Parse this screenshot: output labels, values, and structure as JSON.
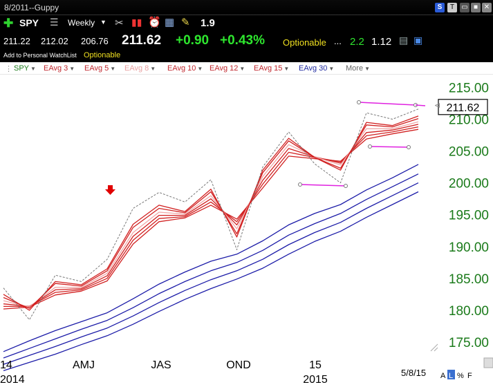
{
  "window": {
    "title": "8/2011--Guppy"
  },
  "toolbar": {
    "symbol": "SPY",
    "period": "Weekly",
    "value": "1.9"
  },
  "quote": {
    "open": "211.22",
    "high": "212.02",
    "low": "206.76",
    "last": "211.62",
    "change": "+0.90",
    "change_pct": "+0.43%",
    "optionable": "Optionable",
    "dots": "...",
    "stat1": "2.2",
    "stat2": "1.12",
    "watchlist": "Add to Personal WatchList",
    "optionable2": "Optionable"
  },
  "legend": [
    {
      "label": "SPY",
      "color": "#1a7a1a"
    },
    {
      "label": "EAvg 3",
      "color": "#c0272d"
    },
    {
      "label": "EAvg 5",
      "color": "#c0272d"
    },
    {
      "label": "EAvg 8",
      "color": "#e8a0a0"
    },
    {
      "label": "EAvg 10",
      "color": "#c0272d"
    },
    {
      "label": "EAvg 12",
      "color": "#c0272d"
    },
    {
      "label": "EAvg 15",
      "color": "#c0272d"
    },
    {
      "label": "EAvg 30",
      "color": "#1f2aa0"
    },
    {
      "label": "More",
      "color": "#666666"
    }
  ],
  "colors": {
    "price": "#777777",
    "short_ma": "#d12020",
    "short_ma_light": "#f0a8a8",
    "long_ma": "#1c1ca8",
    "trendline": "#e020e0",
    "axis_text": "#1a7a1a",
    "arrow": "#e00000"
  },
  "axis": {
    "y_ticks": [
      "215.00",
      "210.00",
      "205.00",
      "200.00",
      "195.00",
      "190.00",
      "185.00",
      "180.00",
      "175.00"
    ],
    "x_ticks": [
      "14",
      "AMJ",
      "JAS",
      "OND",
      "15"
    ],
    "year_labels": [
      "2014",
      "2015"
    ],
    "date": "5/8/15",
    "last_price_label": "211.62",
    "footer_buttons": [
      "A",
      "L",
      "%",
      "F"
    ]
  },
  "chart_data": {
    "type": "line",
    "ylim": [
      172.5,
      217
    ],
    "x": [
      "2014-01",
      "2014-02",
      "2014-03",
      "2014-04",
      "2014-05",
      "2014-06",
      "2014-07",
      "2014-08",
      "2014-09",
      "2014-10",
      "2014-11",
      "2014-12",
      "2015-01",
      "2015-02",
      "2015-03",
      "2015-04",
      "2015-05"
    ],
    "series": [
      {
        "values": [
          183.5,
          178.5,
          185.5,
          184.5,
          188.0,
          196.0,
          198.5,
          197.0,
          200.5,
          189.5,
          202.5,
          208.0,
          203.0,
          200.0,
          211.0,
          210.0,
          211.6
        ]
      },
      {
        "values": [
          182.5,
          180.0,
          184.5,
          184.0,
          186.5,
          193.5,
          196.5,
          195.5,
          199.0,
          191.5,
          202.0,
          207.0,
          204.0,
          202.0,
          209.5,
          209.0,
          210.5
        ]
      },
      {
        "values": [
          182.0,
          180.3,
          184.2,
          183.8,
          186.2,
          193.0,
          196.0,
          195.3,
          198.6,
          192.0,
          201.6,
          206.6,
          204.0,
          202.3,
          209.1,
          208.8,
          210.1
        ]
      },
      {
        "values": [
          181.5,
          180.5,
          183.6,
          183.6,
          185.8,
          192.2,
          195.4,
          195.1,
          198.0,
          192.8,
          201.0,
          206.0,
          204.1,
          202.8,
          208.5,
          208.5,
          209.6
        ]
      },
      {
        "values": [
          181.0,
          180.6,
          183.2,
          183.4,
          185.4,
          191.6,
          194.9,
          194.9,
          197.5,
          193.4,
          200.4,
          205.4,
          204.1,
          203.1,
          207.9,
          208.3,
          209.2
        ]
      },
      {
        "values": [
          180.6,
          180.6,
          182.8,
          183.2,
          185.0,
          191.0,
          194.4,
          194.7,
          197.0,
          193.9,
          199.8,
          204.8,
          204.0,
          203.3,
          207.4,
          208.0,
          208.8
        ]
      },
      {
        "values": [
          180.2,
          180.5,
          182.4,
          183.0,
          184.6,
          190.4,
          193.9,
          194.5,
          196.5,
          194.3,
          199.2,
          204.2,
          203.8,
          203.4,
          206.9,
          207.7,
          208.4
        ]
      },
      {
        "values": [
          173.5,
          175.2,
          176.8,
          178.2,
          179.6,
          181.8,
          184.1,
          186.0,
          187.7,
          188.8,
          190.9,
          193.4,
          195.2,
          196.6,
          198.9,
          200.8,
          202.9
        ]
      },
      {
        "values": [
          172.5,
          174.0,
          175.5,
          177.0,
          178.4,
          180.4,
          182.6,
          184.5,
          186.2,
          187.5,
          189.4,
          191.8,
          193.6,
          195.2,
          197.4,
          199.4,
          201.4
        ]
      },
      {
        "values": [
          171.5,
          172.9,
          174.3,
          175.8,
          177.2,
          179.1,
          181.2,
          183.1,
          184.8,
          186.2,
          188.0,
          190.3,
          192.2,
          193.8,
          196.0,
          198.0,
          200.0
        ]
      },
      {
        "values": [
          170.5,
          171.8,
          173.1,
          174.6,
          176.0,
          177.8,
          179.8,
          181.7,
          183.4,
          184.9,
          186.6,
          188.8,
          190.8,
          192.4,
          194.6,
          196.6,
          198.6
        ]
      }
    ]
  }
}
